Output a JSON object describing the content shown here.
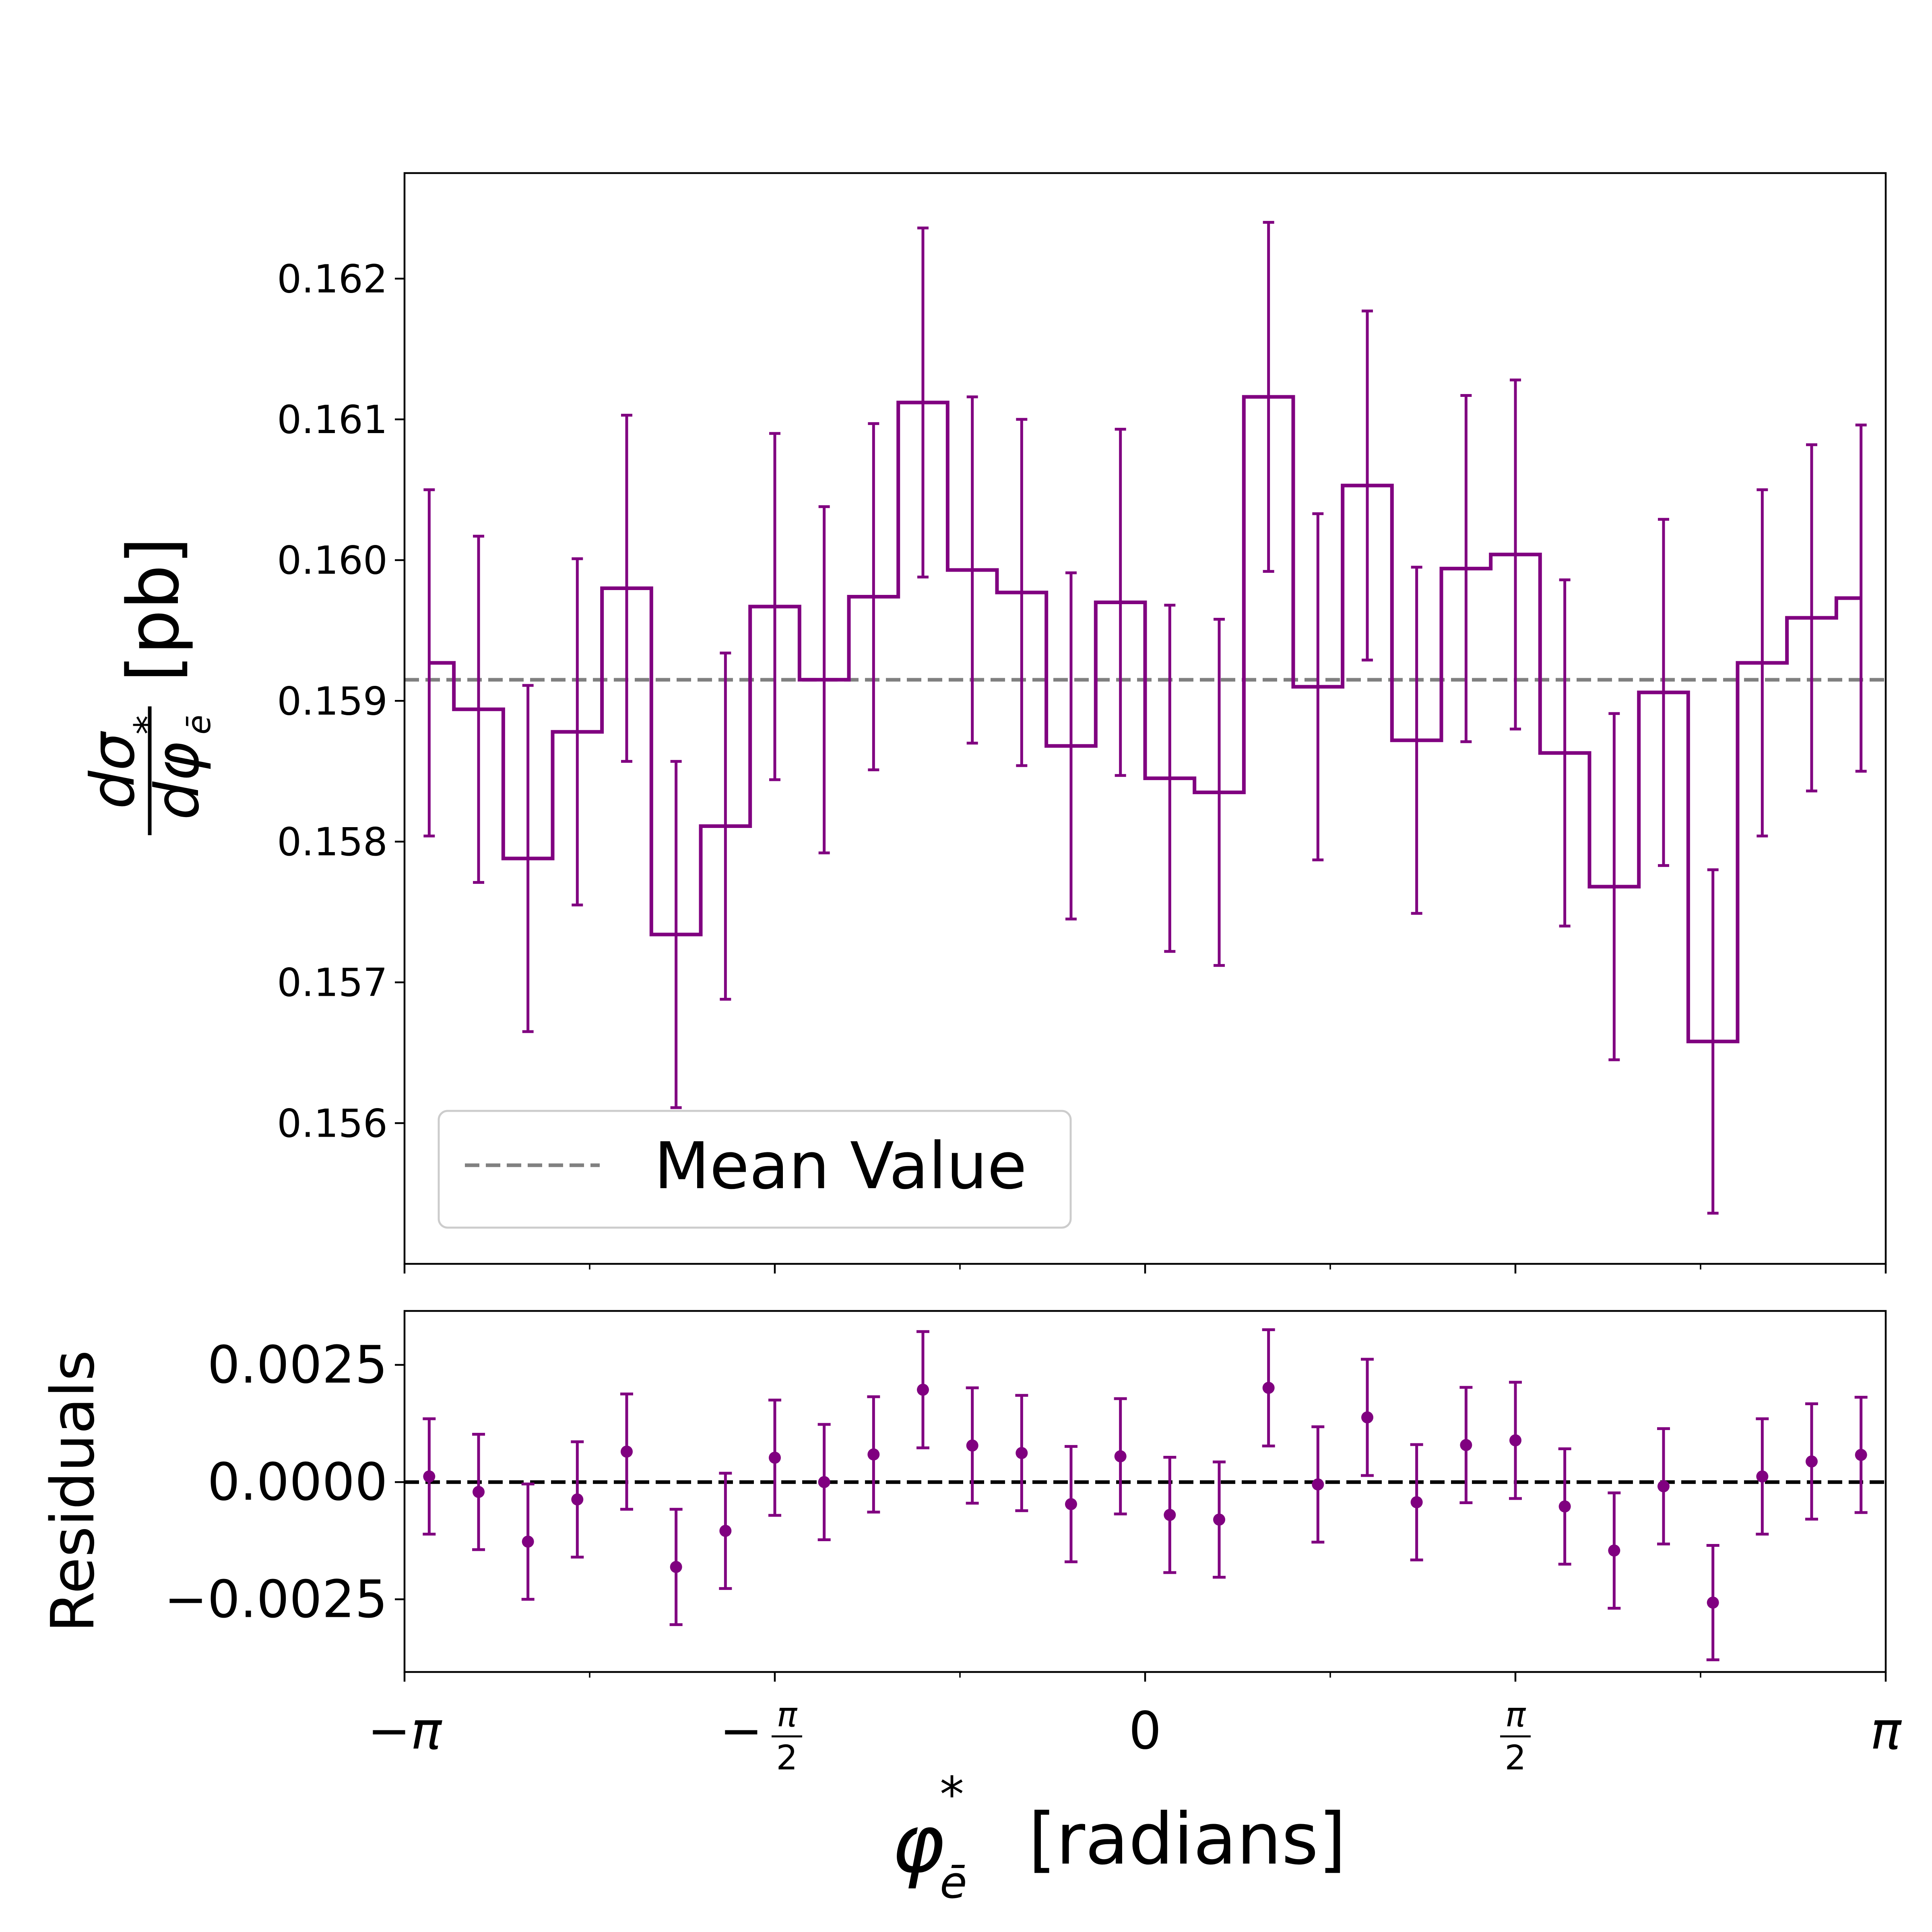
{
  "colors": {
    "series": "#800080",
    "mean_line": "#808080",
    "zero_line": "#000000"
  },
  "chart_data": [
    {
      "type": "step-errorbar",
      "panel": "main",
      "ylabel_numerator": "dσ",
      "ylabel_denominator": "dφ",
      "ylabel_sup": "*",
      "ylabel_sub": "ē",
      "ylabel_unit": "[pb]",
      "xlim": [
        -3.14159,
        3.14159
      ],
      "ylim": [
        0.155,
        0.16275
      ],
      "yticks": [
        0.156,
        0.157,
        0.158,
        0.159,
        0.16,
        0.161,
        0.162
      ],
      "ytick_labels": [
        "0.156",
        "0.157",
        "0.158",
        "0.159",
        "0.160",
        "0.161",
        "0.162"
      ],
      "x_bin_centers": [
        -3.0369,
        -2.8274,
        -2.618,
        -2.4086,
        -2.1991,
        -1.9897,
        -1.7802,
        -1.5708,
        -1.3614,
        -1.1519,
        -0.9425,
        -0.733,
        -0.5236,
        -0.3142,
        -0.1047,
        0.1047,
        0.3142,
        0.5236,
        0.733,
        0.9425,
        1.1519,
        1.3614,
        1.5708,
        1.7802,
        1.9897,
        2.1991,
        2.4086,
        2.618,
        2.8274,
        3.0369
      ],
      "values": [
        0.15927,
        0.15894,
        0.15788,
        0.15878,
        0.1598,
        0.15734,
        0.15811,
        0.15967,
        0.15915,
        0.15974,
        0.16112,
        0.15993,
        0.15977,
        0.15868,
        0.1597,
        0.15845,
        0.15835,
        0.16116,
        0.1591,
        0.16053,
        0.15872,
        0.15994,
        0.16004,
        0.15863,
        0.15768,
        0.15906,
        0.15658,
        0.15927,
        0.15959,
        0.15973
      ],
      "errors": [
        0.00123,
        0.00123,
        0.00123,
        0.00123,
        0.00123,
        0.00123,
        0.00123,
        0.00123,
        0.00123,
        0.00123,
        0.00124,
        0.00123,
        0.00123,
        0.00123,
        0.00123,
        0.00123,
        0.00123,
        0.00124,
        0.00123,
        0.00124,
        0.00123,
        0.00123,
        0.00124,
        0.00123,
        0.00123,
        0.00123,
        0.00122,
        0.00123,
        0.00123,
        0.00123
      ],
      "mean_value": 0.15915,
      "legend": {
        "entries": [
          "Mean Value"
        ],
        "placement": "lower-left"
      },
      "grid": false
    },
    {
      "type": "errorbar",
      "panel": "residuals",
      "ylabel": "Residuals",
      "xlabel_symbol": "φ",
      "xlabel_sup": "*",
      "xlabel_sub": "ē",
      "xlabel_unit": "[radians]",
      "xlim": [
        -3.14159,
        3.14159
      ],
      "ylim": [
        -0.00405,
        0.00365
      ],
      "yticks": [
        -0.0025,
        0.0,
        0.0025
      ],
      "ytick_labels": [
        "−0.0025",
        "0.0000",
        "0.0025"
      ],
      "x_major_ticks": [
        -3.14159,
        -1.5708,
        0,
        1.5708,
        3.14159
      ],
      "x_minor_ticks": [
        -2.35619,
        -0.7854,
        0.7854,
        2.35619
      ],
      "x_tick_labels": [
        {
          "main": "−π"
        },
        {
          "sign": "−",
          "num": "π",
          "den": "2"
        },
        {
          "main": "0"
        },
        {
          "num": "π",
          "den": "2"
        },
        {
          "main": "π"
        }
      ],
      "residuals": [
        0.00012,
        -0.00021,
        -0.00127,
        -0.00037,
        0.00065,
        -0.00181,
        -0.00104,
        0.00052,
        0.0,
        0.00059,
        0.00197,
        0.00078,
        0.00062,
        -0.00047,
        0.00055,
        -0.0007,
        -0.0008,
        0.00201,
        -5e-05,
        0.00138,
        -0.00043,
        0.00079,
        0.00089,
        -0.00052,
        -0.00146,
        -9e-05,
        -0.00257,
        0.00012,
        0.00044,
        0.00058
      ],
      "errors": [
        0.00123,
        0.00123,
        0.00123,
        0.00123,
        0.00123,
        0.00123,
        0.00123,
        0.00123,
        0.00123,
        0.00123,
        0.00124,
        0.00123,
        0.00123,
        0.00123,
        0.00123,
        0.00123,
        0.00123,
        0.00124,
        0.00123,
        0.00124,
        0.00123,
        0.00123,
        0.00124,
        0.00123,
        0.00123,
        0.00123,
        0.00122,
        0.00123,
        0.00123,
        0.00123
      ],
      "zero_line": 0.0,
      "grid": false
    }
  ]
}
